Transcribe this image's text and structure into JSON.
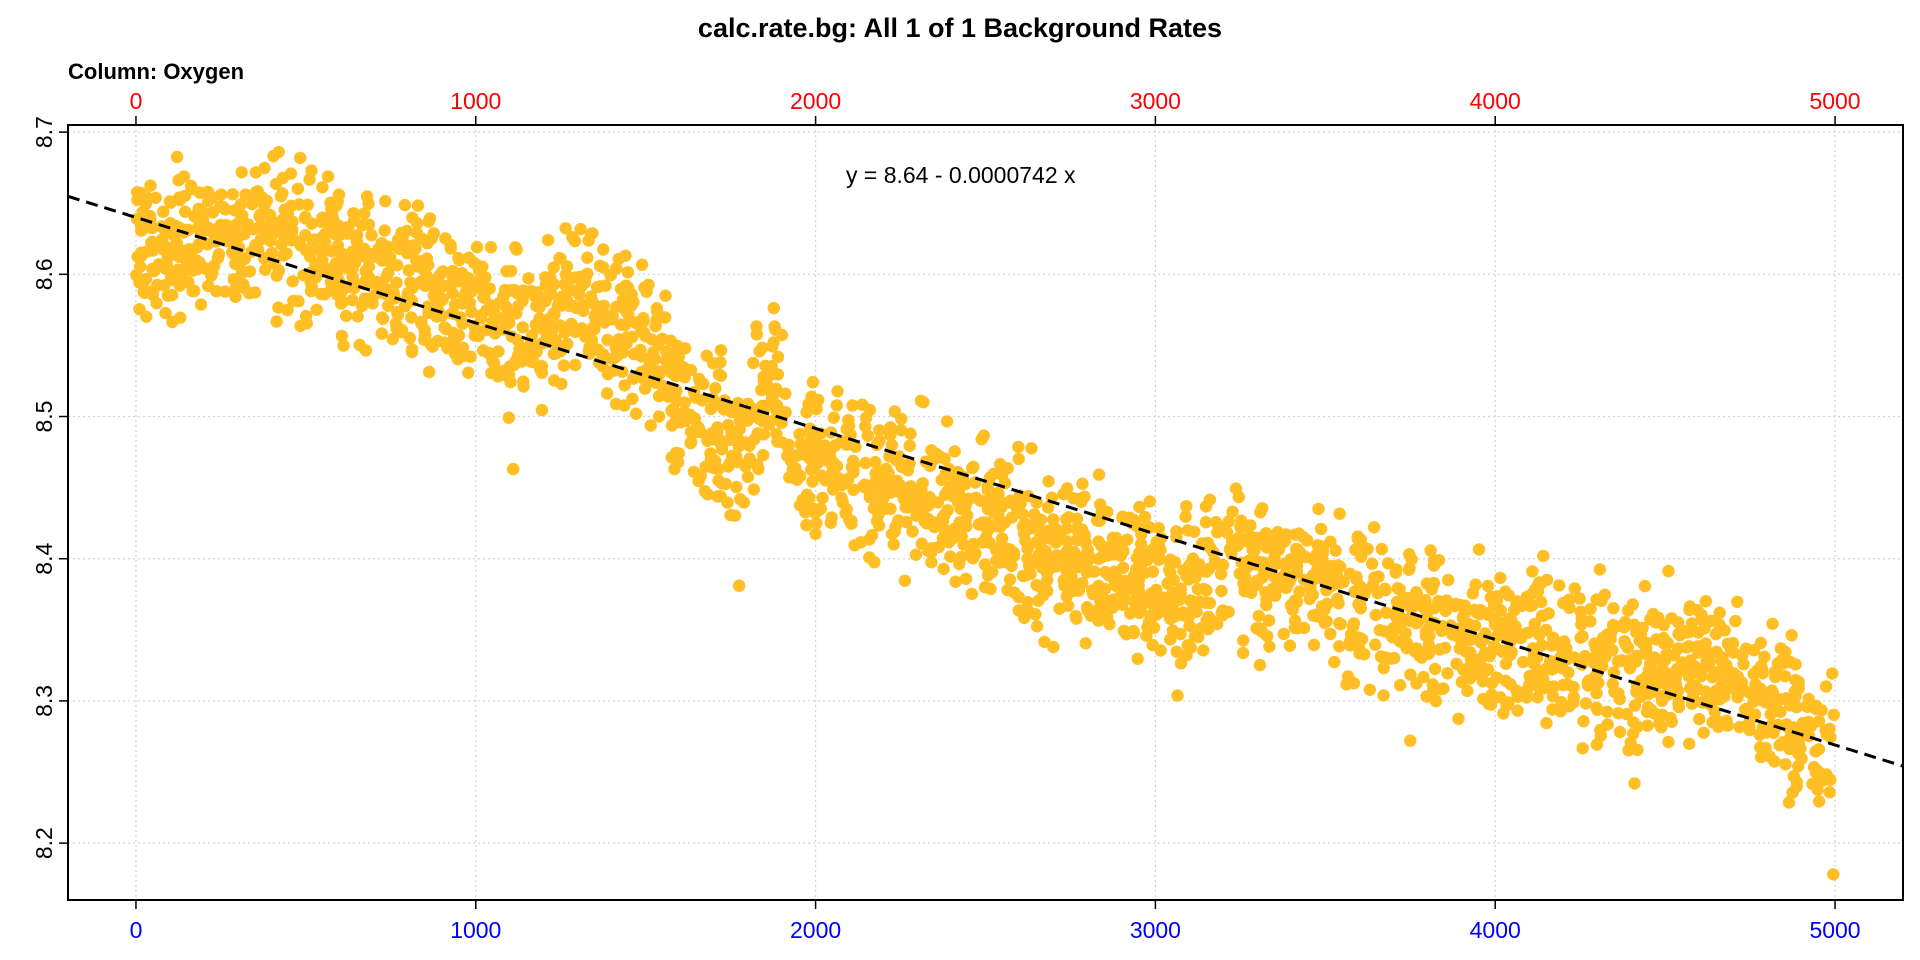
{
  "chart_data": {
    "type": "scatter",
    "title": "calc.rate.bg: All 1 of 1 Background Rates",
    "subtitle": "Column: Oxygen",
    "equation": "y = 8.64 - 0.0000742 x",
    "xlim": [
      -200,
      5200
    ],
    "ylim": [
      8.16,
      8.705
    ],
    "x_ticks": [
      "0",
      "1000",
      "2000",
      "3000",
      "4000",
      "5000"
    ],
    "x_tick_values": [
      0,
      1000,
      2000,
      3000,
      4000,
      5000
    ],
    "x_top_ticks": [
      "0",
      "1000",
      "2000",
      "3000",
      "4000",
      "5000"
    ],
    "y_ticks": [
      "8.2",
      "8.3",
      "8.4",
      "8.5",
      "8.6",
      "8.7"
    ],
    "y_tick_values": [
      8.2,
      8.3,
      8.4,
      8.5,
      8.6,
      8.7
    ],
    "grid": true,
    "point_color": "#ffbf24",
    "bottom_axis_color": "#0000ff",
    "top_axis_color": "#ff0000",
    "fit": {
      "intercept": 8.64,
      "slope": -7.42e-05,
      "style": "dashed"
    },
    "series_trend": [
      {
        "x": 0,
        "y": 8.62
      },
      {
        "x": 200,
        "y": 8.62
      },
      {
        "x": 400,
        "y": 8.625
      },
      {
        "x": 550,
        "y": 8.62
      },
      {
        "x": 700,
        "y": 8.6
      },
      {
        "x": 900,
        "y": 8.585
      },
      {
        "x": 1100,
        "y": 8.56
      },
      {
        "x": 1300,
        "y": 8.575
      },
      {
        "x": 1500,
        "y": 8.555
      },
      {
        "x": 1650,
        "y": 8.49
      },
      {
        "x": 1780,
        "y": 8.47
      },
      {
        "x": 1870,
        "y": 8.53
      },
      {
        "x": 1950,
        "y": 8.47
      },
      {
        "x": 2100,
        "y": 8.46
      },
      {
        "x": 2300,
        "y": 8.445
      },
      {
        "x": 2500,
        "y": 8.42
      },
      {
        "x": 2700,
        "y": 8.405
      },
      {
        "x": 2900,
        "y": 8.395
      },
      {
        "x": 3050,
        "y": 8.37
      },
      {
        "x": 3250,
        "y": 8.395
      },
      {
        "x": 3450,
        "y": 8.385
      },
      {
        "x": 3650,
        "y": 8.36
      },
      {
        "x": 3800,
        "y": 8.355
      },
      {
        "x": 4000,
        "y": 8.345
      },
      {
        "x": 4200,
        "y": 8.34
      },
      {
        "x": 4400,
        "y": 8.32
      },
      {
        "x": 4550,
        "y": 8.33
      },
      {
        "x": 4700,
        "y": 8.32
      },
      {
        "x": 4850,
        "y": 8.285
      },
      {
        "x": 5000,
        "y": 8.27
      }
    ],
    "notable_points": [
      {
        "x": 1110,
        "y": 8.463
      },
      {
        "x": 1775,
        "y": 8.381
      },
      {
        "x": 3750,
        "y": 8.272
      },
      {
        "x": 4410,
        "y": 8.242
      },
      {
        "x": 4995,
        "y": 8.178
      },
      {
        "x": 420,
        "y": 8.686
      },
      {
        "x": 2310,
        "y": 8.511
      }
    ]
  }
}
